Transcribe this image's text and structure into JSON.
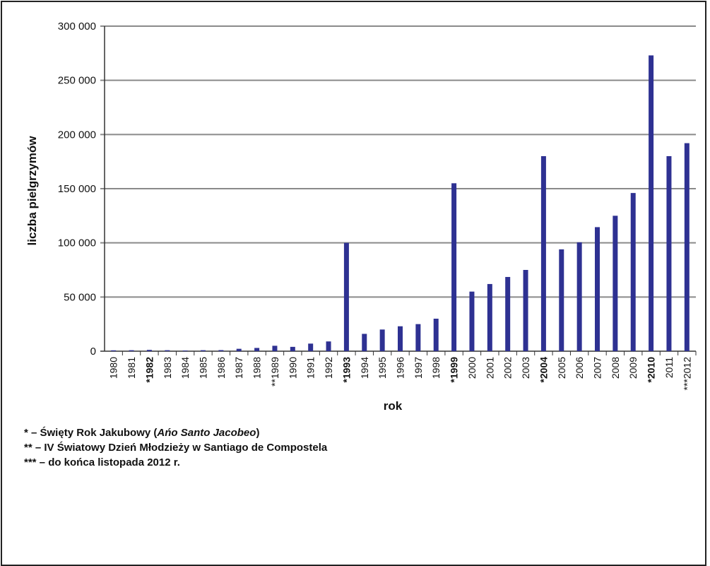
{
  "chart_data": {
    "type": "bar",
    "ylabel": "liczba pielgrzymów",
    "xlabel": "rok",
    "ylim": [
      0,
      300000
    ],
    "yticks": [
      "0",
      "50 000",
      "100 000",
      "150 000",
      "200 000",
      "250 000",
      "300 000"
    ],
    "ytick_values": [
      0,
      50000,
      100000,
      150000,
      200000,
      250000,
      300000
    ],
    "grid": true,
    "bar_color": "#2e3192",
    "categories": [
      "1980",
      "1981",
      "*1982",
      "1983",
      "1984",
      "1985",
      "1986",
      "1987",
      "1988",
      "**1989",
      "1990",
      "1991",
      "1992",
      "*1993",
      "1994",
      "1995",
      "1996",
      "1997",
      "1998",
      "*1999",
      "2000",
      "2001",
      "2002",
      "2003",
      "*2004",
      "2005",
      "2006",
      "2007",
      "2008",
      "2009",
      "*2010",
      "2011",
      "***2012"
    ],
    "bold_categories": [
      "*1982",
      "*1993",
      "*1999",
      "*2004",
      "*2010"
    ],
    "series": [
      {
        "values": [
          800,
          900,
          1200,
          900,
          600,
          900,
          1000,
          2200,
          3000,
          5000,
          4000,
          7000,
          9000,
          100000,
          16000,
          20000,
          23000,
          25000,
          30000,
          155000,
          55000,
          62000,
          68500,
          75000,
          180000,
          94000,
          100500,
          114500,
          125000,
          146000,
          273000,
          180000,
          192000
        ]
      }
    ]
  },
  "notes": {
    "line1_prefix": "* – Święty Rok Jakubowy  (",
    "line1_italic": "Ańo Santo Jacobeo",
    "line1_suffix": ")",
    "line2": "** – IV Światowy Dzień Młodzieży w Santiago de Compostela",
    "line3": "*** – do końca listopada 2012 r."
  }
}
